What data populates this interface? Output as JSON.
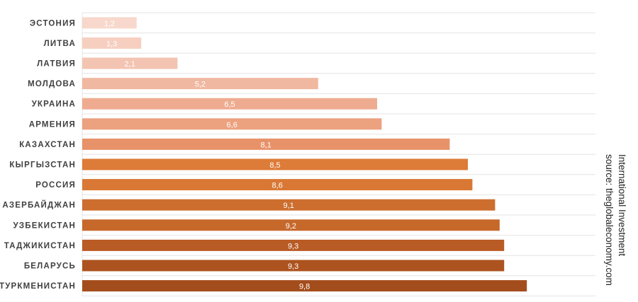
{
  "chart_data": {
    "type": "bar",
    "orientation": "horizontal",
    "title": "",
    "xlabel": "",
    "ylabel": "",
    "xlim": [
      0,
      10
    ],
    "grid": true,
    "categories": [
      "ЭСТОНИЯ",
      "ЛИТВА",
      "ЛАТВИЯ",
      "МОЛДОВА",
      "УКРАИНА",
      "АРМЕНИЯ",
      "КАЗАХСТАН",
      "КЫРГЫЗСТАН",
      "РОССИЯ",
      "АЗЕРБАЙДЖАН",
      "УЗБЕКИСТАН",
      "ТАДЖИКИСТАН",
      "БЕЛАРУСЬ",
      "ТУРКМЕНИСТАН"
    ],
    "values": [
      1.2,
      1.3,
      2.1,
      5.2,
      6.5,
      6.6,
      8.1,
      8.5,
      8.6,
      9.1,
      9.2,
      9.3,
      9.3,
      9.8
    ],
    "value_labels": [
      "1,2",
      "1,3",
      "2,1",
      "5,2",
      "6,5",
      "6,6",
      "8,1",
      "8,5",
      "8,6",
      "9,1",
      "9,2",
      "9,3",
      "9,3",
      "9,8"
    ],
    "colors": [
      "#f8d8cc",
      "#f6cfc0",
      "#f3c4b1",
      "#f0b8a1",
      "#eeab8f",
      "#eca17f",
      "#e8926a",
      "#dd7b38",
      "#d97834",
      "#cd6e2f",
      "#c7682b",
      "#b95b25",
      "#ad531f",
      "#a44d1c"
    ],
    "grid_color": "#e4e4e4"
  },
  "source": {
    "line1": "International Investment",
    "line2": "source: theglobaleconomy.com"
  }
}
